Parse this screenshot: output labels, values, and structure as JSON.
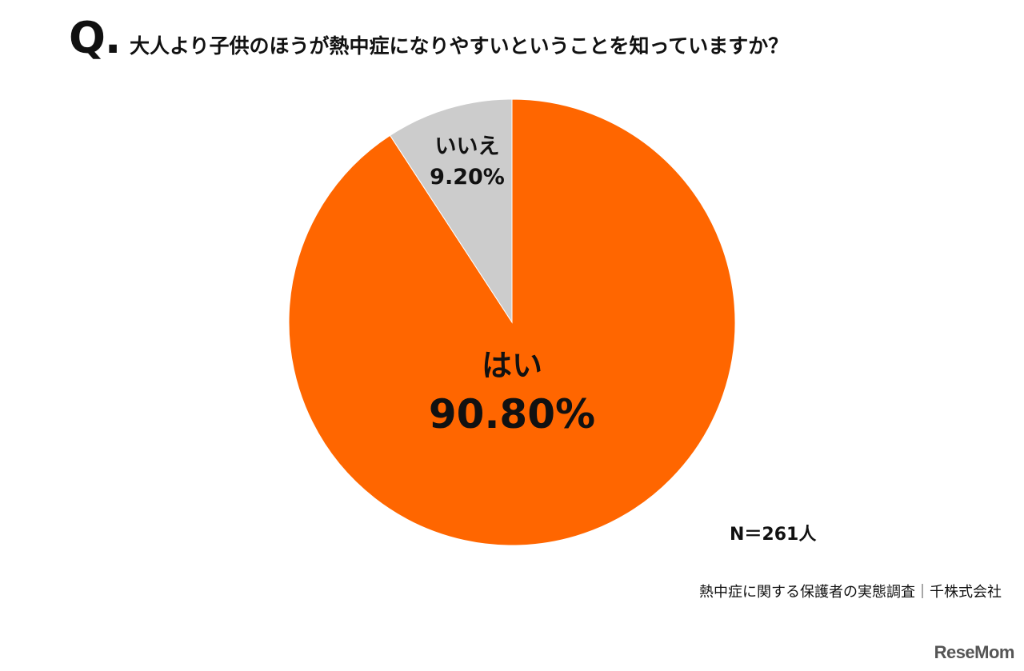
{
  "header": {
    "q_mark": "Q.",
    "question": "大人より子供のほうが熱中症になりやすいということを知っていますか？"
  },
  "chart_data": {
    "type": "pie",
    "title": "大人より子供のほうが熱中症になりやすいということを知っていますか？",
    "slices": [
      {
        "label": "はい",
        "value": 90.8,
        "value_label": "90.80%",
        "color": "#ff6600"
      },
      {
        "label": "いいえ",
        "value": 9.2,
        "value_label": "9.20%",
        "color": "#cccccc"
      }
    ],
    "start": "12 o'clock",
    "direction": "clockwise"
  },
  "footer": {
    "sample_size": "N＝261人",
    "source": "熱中症に関する保護者の実態調査｜千株式会社",
    "logo": "ReseMom"
  }
}
